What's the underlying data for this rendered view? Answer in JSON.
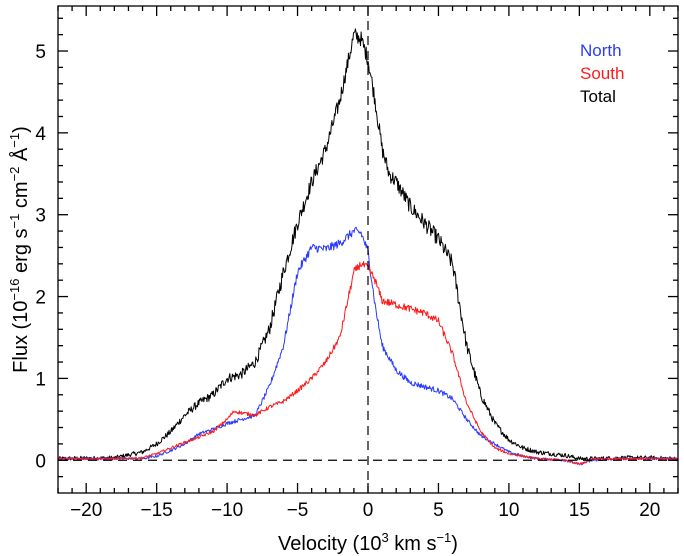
{
  "chart_data": {
    "type": "line",
    "title": "",
    "xlabel": {
      "prefix": "Velocity (10",
      "sup": "3",
      "mid": " km s",
      "sup2": "−1",
      "suffix": ")"
    },
    "ylabel": {
      "prefix": "Flux (10",
      "sup1": "−16",
      "part2": " erg s",
      "sup2": "−1",
      "part3": " cm",
      "sup3": "−2",
      "part4": " Å",
      "sup4": "−1",
      "suffix": ")"
    },
    "xlim": [
      -22,
      22
    ],
    "ylim": [
      -0.4,
      5.55
    ],
    "xticks": [
      -20,
      -15,
      -10,
      -5,
      0,
      5,
      10,
      15,
      20
    ],
    "yticks": [
      0,
      1,
      2,
      3,
      4,
      5
    ],
    "grid": false,
    "legend_position": "top-right",
    "reference_lines": [
      {
        "orientation": "horizontal",
        "value": 0,
        "style": "dashed"
      },
      {
        "orientation": "vertical",
        "value": 0,
        "style": "dashed"
      }
    ],
    "series": [
      {
        "name": "North",
        "color": "#2a3bff",
        "noise": 0.04,
        "x": [
          -22,
          -18,
          -16,
          -15,
          -14,
          -13,
          -12,
          -11,
          -10,
          -9,
          -8,
          -7,
          -6,
          -5,
          -4,
          -3,
          -2,
          -1,
          -0.5,
          0,
          0.5,
          1,
          2,
          3,
          4,
          5,
          6,
          7,
          8,
          9,
          10,
          11,
          12,
          14,
          15,
          16,
          18,
          20,
          22
        ],
        "y": [
          0.02,
          0.02,
          0.02,
          0.05,
          0.12,
          0.2,
          0.32,
          0.38,
          0.45,
          0.5,
          0.55,
          0.9,
          1.4,
          2.3,
          2.6,
          2.58,
          2.65,
          2.8,
          2.78,
          2.55,
          1.9,
          1.4,
          1.1,
          0.95,
          0.9,
          0.85,
          0.75,
          0.5,
          0.3,
          0.2,
          0.1,
          0.05,
          0.02,
          0.0,
          -0.05,
          0.0,
          0.02,
          0.02,
          0.02
        ]
      },
      {
        "name": "South",
        "color": "#ff1a1a",
        "noise": 0.035,
        "x": [
          -22,
          -18,
          -16,
          -15,
          -14,
          -13,
          -12,
          -11,
          -10,
          -9.5,
          -9,
          -8,
          -7,
          -6,
          -5,
          -4,
          -3,
          -2,
          -1,
          -0.5,
          0,
          0.5,
          1,
          2,
          3,
          4,
          5,
          6,
          7,
          8,
          9,
          10,
          11,
          12,
          14,
          15,
          16,
          18,
          20,
          22
        ],
        "y": [
          0.02,
          0.02,
          0.03,
          0.08,
          0.15,
          0.22,
          0.28,
          0.35,
          0.5,
          0.6,
          0.58,
          0.55,
          0.65,
          0.72,
          0.85,
          1.0,
          1.2,
          1.5,
          2.3,
          2.4,
          2.35,
          2.2,
          1.95,
          1.9,
          1.85,
          1.8,
          1.7,
          1.3,
          0.7,
          0.35,
          0.15,
          0.08,
          0.05,
          0.02,
          0.0,
          -0.05,
          0.02,
          0.02,
          0.02,
          0.02
        ]
      },
      {
        "name": "Total",
        "color": "#000000",
        "noise": 0.07,
        "x": [
          -22,
          -18,
          -16,
          -15,
          -14,
          -13,
          -12,
          -11,
          -10,
          -9,
          -8,
          -7,
          -6,
          -5,
          -4,
          -3,
          -2,
          -1.5,
          -1,
          -0.5,
          0,
          0.5,
          1,
          1.5,
          2,
          3,
          4,
          5,
          6,
          6.5,
          7,
          8,
          9,
          10,
          11,
          12,
          14,
          15,
          16,
          18,
          20,
          22
        ],
        "y": [
          0.02,
          0.03,
          0.1,
          0.2,
          0.35,
          0.55,
          0.7,
          0.8,
          1.0,
          1.05,
          1.2,
          1.6,
          2.3,
          2.9,
          3.4,
          3.8,
          4.4,
          4.8,
          5.2,
          5.15,
          4.9,
          4.4,
          3.8,
          3.5,
          3.4,
          3.1,
          2.9,
          2.7,
          2.4,
          1.9,
          1.4,
          0.8,
          0.45,
          0.25,
          0.15,
          0.1,
          0.06,
          0.02,
          0.02,
          0.03,
          0.03,
          0.02
        ]
      }
    ]
  }
}
